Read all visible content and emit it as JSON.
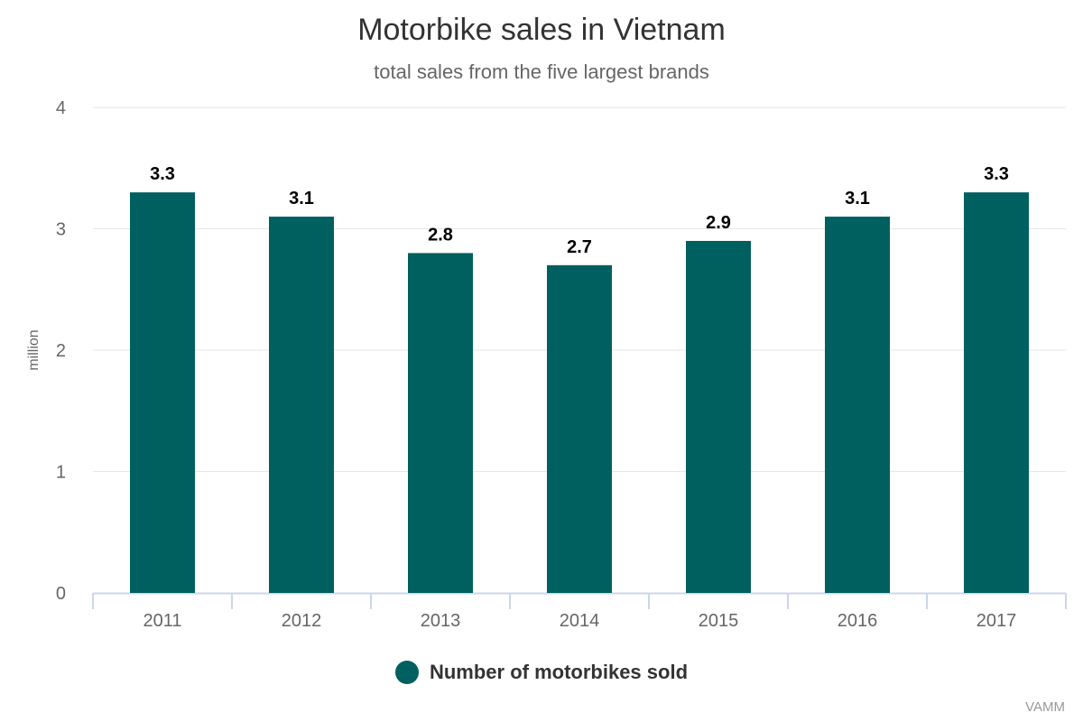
{
  "chart_data": {
    "type": "bar",
    "title": "Motorbike sales in Vietnam",
    "subtitle": "total sales from the five largest brands",
    "categories": [
      "2011",
      "2012",
      "2013",
      "2014",
      "2015",
      "2016",
      "2017"
    ],
    "series": [
      {
        "name": "Number of motorbikes sold",
        "values": [
          3.3,
          3.1,
          2.8,
          2.7,
          2.9,
          3.1,
          3.3
        ],
        "color": "#005f5f"
      }
    ],
    "data_labels": [
      "3.3",
      "3.1",
      "2.8",
      "2.7",
      "2.9",
      "3.1",
      "3.3"
    ],
    "xlabel": "",
    "ylabel": "million",
    "ylim": [
      0,
      4
    ],
    "yticks": [
      "0",
      "1",
      "2",
      "3",
      "4"
    ],
    "grid": true,
    "legend": "bottom-center",
    "credit": "VAMM"
  }
}
